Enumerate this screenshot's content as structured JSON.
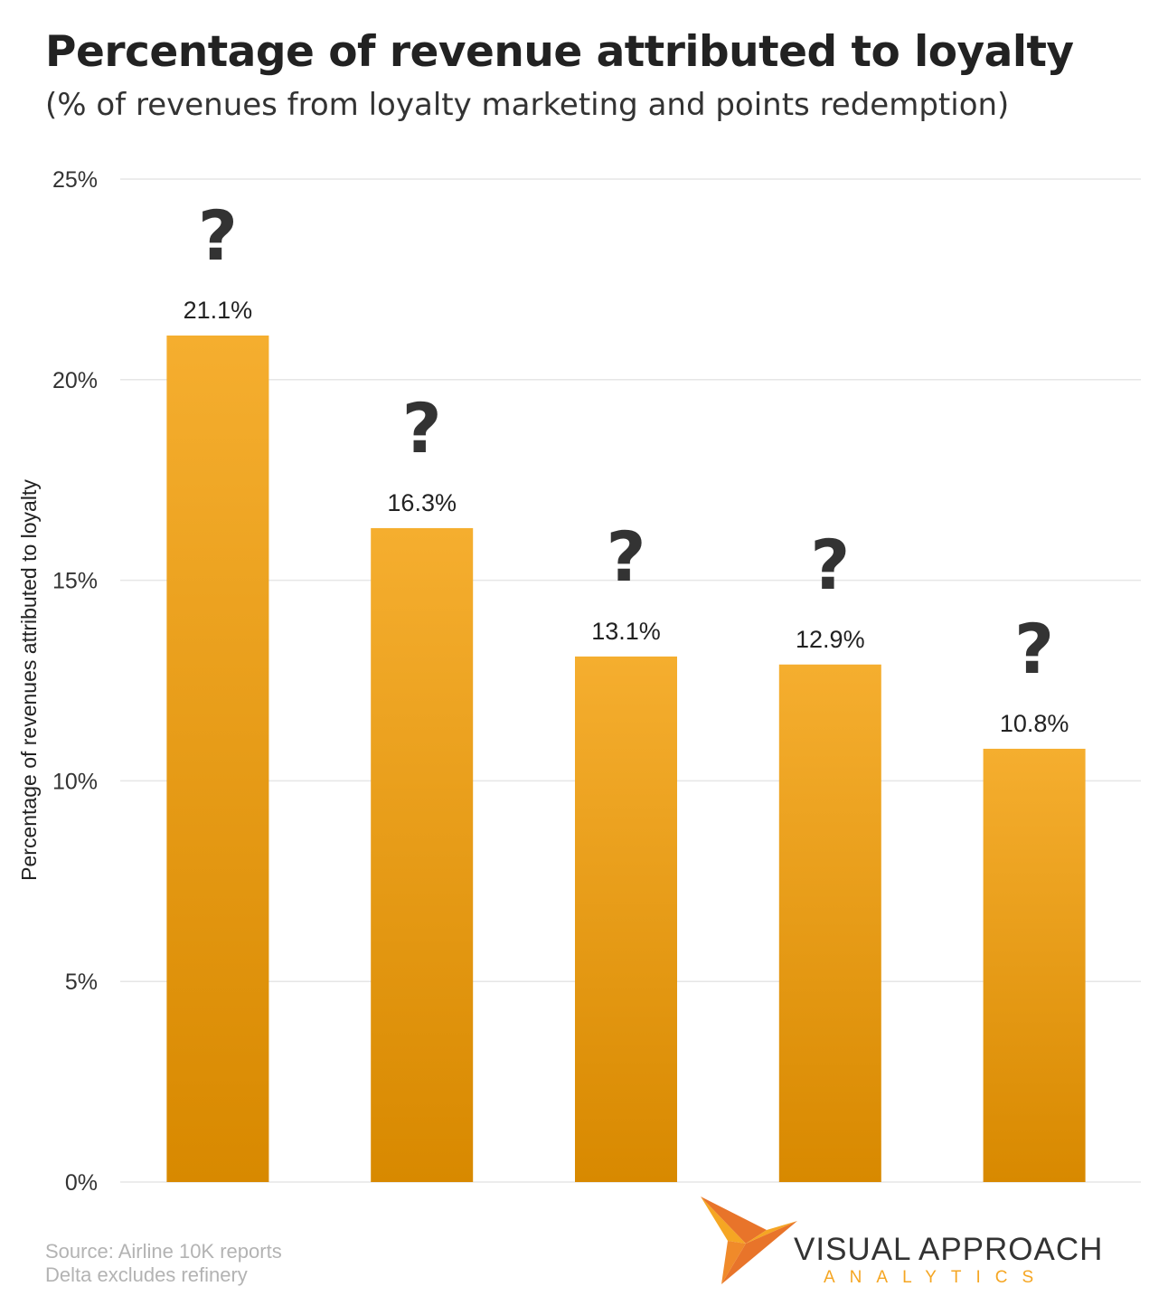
{
  "chart_data": {
    "type": "bar",
    "title": "Percentage of revenue attributed to loyalty",
    "subtitle": "(% of revenues from loyalty marketing and points redemption)",
    "ylabel": "Percentage of revenues attributed to loyalty",
    "categories": [
      "?",
      "?",
      "?",
      "?",
      "?"
    ],
    "values": [
      21.1,
      16.3,
      13.1,
      12.9,
      10.8
    ],
    "value_labels": [
      "21.1%",
      "16.3%",
      "13.1%",
      "12.9%",
      "10.8%"
    ],
    "ylim": [
      0,
      25
    ],
    "yticks": [
      0,
      5,
      10,
      15,
      20,
      25
    ],
    "ytick_labels": [
      "0%",
      "5%",
      "10%",
      "15%",
      "20%",
      "25%"
    ],
    "grid": true,
    "legend": "none",
    "bar_color_top": "#f5ae2f",
    "bar_color_bottom": "#d88900"
  },
  "footer": {
    "source_line1": "Source: Airline 10K reports",
    "source_line2": "Delta excludes refinery"
  },
  "logo": {
    "name": "VISUAL APPROACH",
    "tagline": "ANALYTICS",
    "accent_color": "#f5a623",
    "secondary_color": "#e8742a"
  }
}
